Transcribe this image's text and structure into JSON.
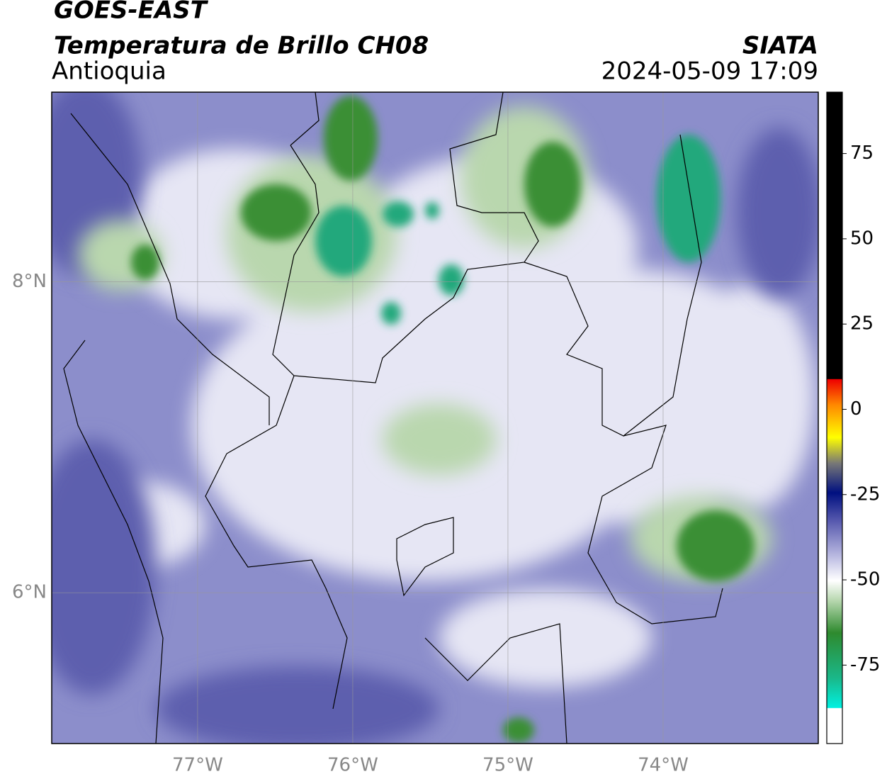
{
  "header": {
    "title": "GOES-EAST",
    "subtitle": "Temperatura de Brillo CH08",
    "region": "Antioquia",
    "source": "SIATA",
    "datetime": "2024-05-09 17:09"
  },
  "chart_data": {
    "type": "map",
    "xlim": [
      -77.94,
      -73.0
    ],
    "ylim": [
      5.03,
      9.22
    ],
    "xticks": [
      {
        "value": -77,
        "label": "77°W"
      },
      {
        "value": -76,
        "label": "76°W"
      },
      {
        "value": -75,
        "label": "75°W"
      },
      {
        "value": -74,
        "label": "74°W"
      }
    ],
    "yticks": [
      {
        "value": 6,
        "label": "6°N"
      },
      {
        "value": 8,
        "label": "8°N"
      }
    ],
    "grid": true,
    "colorbar": {
      "lim": [
        -98,
        93
      ],
      "ticks": [
        -75,
        -50,
        -25,
        0,
        25,
        50,
        75
      ]
    }
  }
}
